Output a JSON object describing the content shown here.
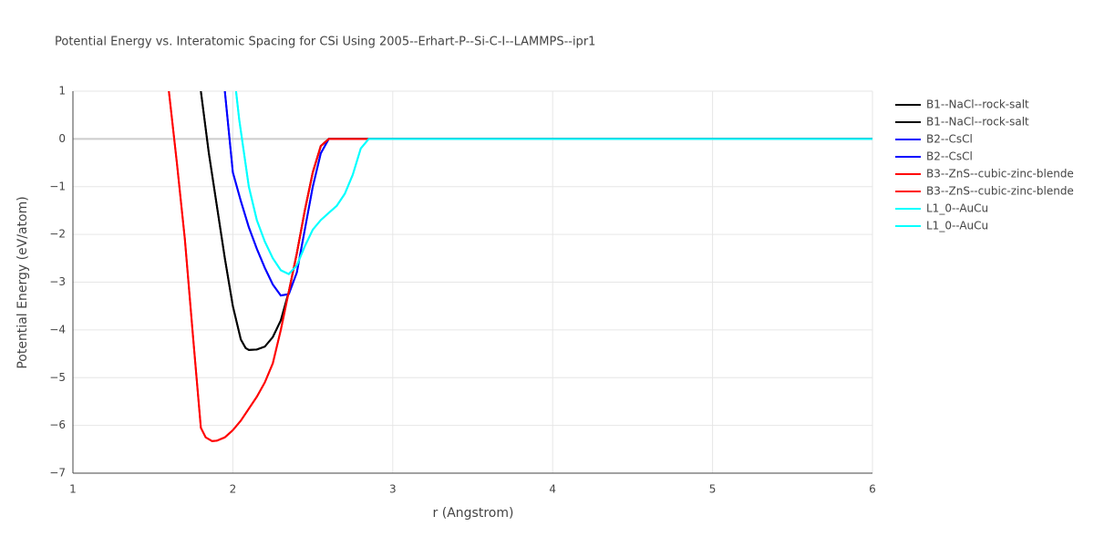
{
  "chart_data": {
    "type": "line",
    "title": "Potential Energy vs. Interatomic Spacing for CSi Using 2005--Erhart-P--Si-C-I--LAMMPS--ipr1",
    "x_label": "r (Angstrom)",
    "y_label": "Potential Energy (eV/atom)",
    "xlim": [
      1,
      6
    ],
    "xticks": [
      1,
      2,
      3,
      4,
      5,
      6
    ],
    "ylim": [
      -7,
      1
    ],
    "yticks": [
      {
        "value": -7,
        "label": "−7"
      },
      {
        "value": -6,
        "label": "−6"
      },
      {
        "value": -5,
        "label": "−5"
      },
      {
        "value": -4,
        "label": "−4"
      },
      {
        "value": -3,
        "label": "−3"
      },
      {
        "value": -2,
        "label": "−2"
      },
      {
        "value": -1,
        "label": "−1"
      },
      0,
      1
    ],
    "grid": true,
    "series": [
      {
        "name": "B1--NaCl--rock-salt",
        "color": "#000000",
        "x": [
          1.8,
          1.85,
          1.9,
          1.95,
          2.0,
          2.05,
          2.08,
          2.1,
          2.15,
          2.2,
          2.25,
          2.3,
          2.35,
          2.4,
          2.45,
          2.5,
          2.55,
          2.6,
          2.7,
          2.8,
          3,
          4,
          5,
          6
        ],
        "values": [
          1,
          -0.3,
          -1.4,
          -2.5,
          -3.5,
          -4.2,
          -4.38,
          -4.42,
          -4.41,
          -4.35,
          -4.15,
          -3.8,
          -3.2,
          -2.4,
          -1.5,
          -0.7,
          -0.15,
          0,
          0,
          0,
          0,
          0,
          0,
          0
        ]
      },
      {
        "name": "B1--NaCl--rock-salt",
        "color": "#000000",
        "x": [
          1.8,
          1.85,
          1.9,
          1.95,
          2.0,
          2.05,
          2.08,
          2.1,
          2.15,
          2.2,
          2.25,
          2.3,
          2.35,
          2.4,
          2.45,
          2.5,
          2.55,
          2.6,
          2.7,
          2.8,
          3,
          4,
          5,
          6
        ],
        "values": [
          1,
          -0.3,
          -1.4,
          -2.5,
          -3.5,
          -4.2,
          -4.38,
          -4.42,
          -4.41,
          -4.35,
          -4.15,
          -3.8,
          -3.2,
          -2.4,
          -1.5,
          -0.7,
          -0.15,
          0,
          0,
          0,
          0,
          0,
          0,
          0
        ]
      },
      {
        "name": "B2--CsCl",
        "color": "#0000ff",
        "x": [
          1.95,
          2.0,
          2.05,
          2.1,
          2.15,
          2.2,
          2.25,
          2.3,
          2.35,
          2.4,
          2.45,
          2.5,
          2.55,
          2.6,
          2.7,
          2.8,
          3,
          4,
          5,
          6
        ],
        "values": [
          1,
          -0.7,
          -1.3,
          -1.85,
          -2.3,
          -2.7,
          -3.05,
          -3.28,
          -3.25,
          -2.8,
          -1.9,
          -1.0,
          -0.3,
          0,
          0,
          0,
          0,
          0,
          0,
          0
        ]
      },
      {
        "name": "B2--CsCl",
        "color": "#0000ff",
        "x": [
          1.95,
          2.0,
          2.05,
          2.1,
          2.15,
          2.2,
          2.25,
          2.3,
          2.35,
          2.4,
          2.45,
          2.5,
          2.55,
          2.6,
          2.7,
          2.8,
          3,
          4,
          5,
          6
        ],
        "values": [
          1,
          -0.7,
          -1.3,
          -1.85,
          -2.3,
          -2.7,
          -3.05,
          -3.28,
          -3.25,
          -2.8,
          -1.9,
          -1.0,
          -0.3,
          0,
          0,
          0,
          0,
          0,
          0,
          0
        ]
      },
      {
        "name": "B3--ZnS--cubic-zinc-blende",
        "color": "#ff0000",
        "x": [
          1.6,
          1.65,
          1.7,
          1.75,
          1.8,
          1.83,
          1.87,
          1.9,
          1.95,
          2.0,
          2.05,
          2.1,
          2.15,
          2.2,
          2.25,
          2.3,
          2.35,
          2.4,
          2.45,
          2.5,
          2.55,
          2.6,
          2.7,
          3,
          4,
          5,
          6
        ],
        "values": [
          1,
          -0.5,
          -2.1,
          -4.1,
          -6.05,
          -6.25,
          -6.33,
          -6.32,
          -6.25,
          -6.1,
          -5.9,
          -5.65,
          -5.4,
          -5.1,
          -4.7,
          -4.0,
          -3.2,
          -2.4,
          -1.5,
          -0.7,
          -0.15,
          0,
          0,
          0,
          0,
          0,
          0
        ]
      },
      {
        "name": "B3--ZnS--cubic-zinc-blende",
        "color": "#ff0000",
        "x": [
          1.6,
          1.65,
          1.7,
          1.75,
          1.8,
          1.83,
          1.87,
          1.9,
          1.95,
          2.0,
          2.05,
          2.1,
          2.15,
          2.2,
          2.25,
          2.3,
          2.35,
          2.4,
          2.45,
          2.5,
          2.55,
          2.6,
          2.7,
          3,
          4,
          5,
          6
        ],
        "values": [
          1,
          -0.5,
          -2.1,
          -4.1,
          -6.05,
          -6.25,
          -6.33,
          -6.32,
          -6.25,
          -6.1,
          -5.9,
          -5.65,
          -5.4,
          -5.1,
          -4.7,
          -4.0,
          -3.2,
          -2.4,
          -1.5,
          -0.7,
          -0.15,
          0,
          0,
          0,
          0,
          0,
          0
        ]
      },
      {
        "name": "L1_0--AuCu",
        "color": "#00ffff",
        "x": [
          2.02,
          2.04,
          2.1,
          2.15,
          2.2,
          2.25,
          2.3,
          2.35,
          2.4,
          2.45,
          2.5,
          2.55,
          2.6,
          2.65,
          2.7,
          2.75,
          2.8,
          2.85,
          3,
          4,
          5,
          6
        ],
        "values": [
          1,
          0.4,
          -1.0,
          -1.7,
          -2.15,
          -2.5,
          -2.75,
          -2.83,
          -2.65,
          -2.25,
          -1.9,
          -1.7,
          -1.55,
          -1.4,
          -1.15,
          -0.75,
          -0.2,
          0,
          0,
          0,
          0,
          0
        ]
      },
      {
        "name": "L1_0--AuCu",
        "color": "#00ffff",
        "x": [
          2.02,
          2.04,
          2.1,
          2.15,
          2.2,
          2.25,
          2.3,
          2.35,
          2.4,
          2.45,
          2.5,
          2.55,
          2.6,
          2.65,
          2.7,
          2.75,
          2.8,
          2.85,
          3,
          4,
          5,
          6
        ],
        "values": [
          1,
          0.4,
          -1.0,
          -1.7,
          -2.15,
          -2.5,
          -2.75,
          -2.83,
          -2.65,
          -2.25,
          -1.9,
          -1.7,
          -1.55,
          -1.4,
          -1.15,
          -0.75,
          -0.2,
          0,
          0,
          0,
          0,
          0
        ]
      }
    ]
  }
}
